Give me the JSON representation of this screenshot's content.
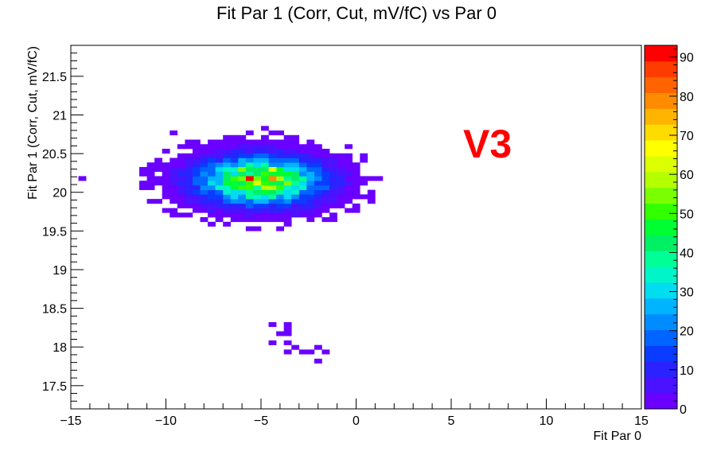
{
  "chart_data": {
    "type": "heatmap",
    "title": "Fit Par 1 (Corr, Cut, mV/fC) vs Par 0",
    "xlabel": "Fit Par 0",
    "ylabel": "Fit Par 1 (Corr, Cut, mV/fC)",
    "xlim": [
      -15,
      15
    ],
    "ylim": [
      17.2,
      21.9
    ],
    "x_bin_width": 0.4,
    "y_bin_width": 0.059,
    "x_ticks": [
      "−15",
      "−10",
      "−5",
      "0",
      "5",
      "10",
      "15"
    ],
    "x_tick_values": [
      -15,
      -10,
      -5,
      0,
      5,
      10,
      15
    ],
    "y_ticks": [
      "17.5",
      "18",
      "18.5",
      "19",
      "19.5",
      "20",
      "20.5",
      "21",
      "21.5"
    ],
    "y_tick_values": [
      17.5,
      18,
      18.5,
      19,
      19.5,
      20,
      20.5,
      21,
      21.5
    ],
    "z_range": [
      0,
      93
    ],
    "colorbar_ticks": [
      "0",
      "10",
      "20",
      "30",
      "40",
      "50",
      "60",
      "70",
      "80",
      "90"
    ],
    "colorbar_tick_values": [
      0,
      10,
      20,
      30,
      40,
      50,
      60,
      70,
      80,
      90
    ],
    "palette": [
      "#6a00ff",
      "#4a12ff",
      "#2a22ff",
      "#0a3cff",
      "#0064ff",
      "#008cff",
      "#00b4ff",
      "#00dcf0",
      "#00f5c8",
      "#00ff96",
      "#00f064",
      "#00ff32",
      "#32ff00",
      "#7aff00",
      "#b4ff00",
      "#dcff00",
      "#ffff00",
      "#ffdc00",
      "#ffb400",
      "#ff8c00",
      "#ff6400",
      "#ff3c00",
      "#ff0000"
    ],
    "cluster_main": {
      "x_center": -5.0,
      "y_center": 20.15,
      "x_sigma": 2.0,
      "y_sigma": 0.19,
      "peak": 90
    },
    "cluster_small": {
      "x_center": -3.5,
      "y_center": 18.05,
      "peak": 1
    },
    "points": [
      {
        "x": -9.6,
        "y": 20.78,
        "z": 1
      },
      {
        "x": -5.0,
        "y": 20.82,
        "z": 1
      },
      {
        "x": -5.9,
        "y": 20.73,
        "z": 1
      },
      {
        "x": -4.2,
        "y": 20.62,
        "z": 1
      },
      {
        "x": -1.6,
        "y": 20.46,
        "z": 1
      },
      {
        "x": -14.6,
        "y": 20.2,
        "z": 1
      },
      {
        "x": -10.8,
        "y": 20.11,
        "z": 1
      },
      {
        "x": -11.0,
        "y": 19.88,
        "z": 1
      },
      {
        "x": -9.8,
        "y": 19.74,
        "z": 1
      },
      {
        "x": -8.0,
        "y": 19.66,
        "z": 1
      },
      {
        "x": -5.4,
        "y": 20.2,
        "z": 90
      },
      {
        "x": -4.6,
        "y": 20.2,
        "z": 78
      },
      {
        "x": -4.3,
        "y": 20.27,
        "z": 62
      },
      {
        "x": -5.8,
        "y": 20.31,
        "z": 56
      },
      {
        "x": -4.4,
        "y": 18.28,
        "z": 1
      },
      {
        "x": -3.7,
        "y": 18.28,
        "z": 1
      },
      {
        "x": -3.5,
        "y": 18.22,
        "z": 1
      },
      {
        "x": -4.0,
        "y": 18.16,
        "z": 1
      },
      {
        "x": -3.4,
        "y": 18.16,
        "z": 1
      },
      {
        "x": -4.4,
        "y": 18.06,
        "z": 1
      },
      {
        "x": -3.7,
        "y": 18.06,
        "z": 1
      },
      {
        "x": -3.1,
        "y": 18.02,
        "z": 1
      },
      {
        "x": -2.2,
        "y": 18.0,
        "z": 1
      },
      {
        "x": -3.6,
        "y": 17.95,
        "z": 1
      },
      {
        "x": -3.0,
        "y": 17.95,
        "z": 1
      },
      {
        "x": -2.5,
        "y": 17.92,
        "z": 1
      },
      {
        "x": -1.5,
        "y": 17.94,
        "z": 1
      },
      {
        "x": -2.1,
        "y": 17.84,
        "z": 1
      }
    ],
    "annotation": "V3",
    "grid": false,
    "colorbar": "right"
  }
}
